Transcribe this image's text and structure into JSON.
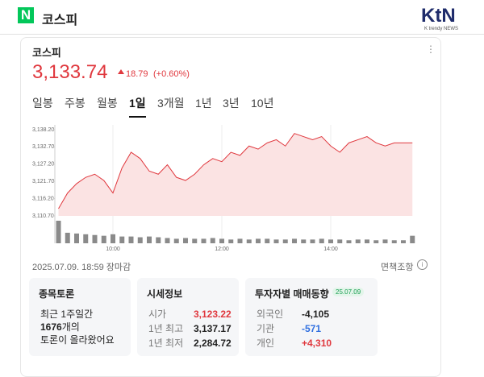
{
  "header": {
    "logo": "N",
    "title": "코스피",
    "brand": "KtN",
    "brand_sub": "K trendy NEWS"
  },
  "quote": {
    "name": "코스피",
    "price": "3,133.74",
    "change": "18.79",
    "change_pct": "(+0.60%)"
  },
  "tabs": [
    "일봉",
    "주봉",
    "월봉",
    "1일",
    "3개월",
    "1년",
    "3년",
    "10년"
  ],
  "selected_tab": "1일",
  "timestamp": "2025.07.09. 18:59 장마감",
  "disclaimer": "면책조항",
  "cards": {
    "discussion": {
      "title": "종목토론",
      "line1": "최근 1주일간",
      "count": "1676",
      "count_suffix": "개의",
      "line3": "토론이 올라왔어요"
    },
    "price_info": {
      "title": "시세정보",
      "rows": [
        {
          "label": "시가",
          "value": "3,123.22",
          "color": "#e0383e"
        },
        {
          "label": "1년 최고",
          "value": "3,137.17",
          "color": "#222222"
        },
        {
          "label": "1년 최저",
          "value": "2,284.72",
          "color": "#222222"
        }
      ]
    },
    "investors": {
      "title": "투자자별 매매동향",
      "badge": "25.07.09",
      "rows": [
        {
          "label": "외국인",
          "value": "-4,105",
          "color": "#222222"
        },
        {
          "label": "기관",
          "value": "-571",
          "color": "#2f6fe0"
        },
        {
          "label": "개인",
          "value": "+4,310",
          "color": "#e0383e"
        }
      ]
    }
  },
  "chart_data": {
    "type": "line",
    "x": [
      "09:00",
      "09:10",
      "09:20",
      "09:30",
      "09:40",
      "09:50",
      "10:00",
      "10:10",
      "10:20",
      "10:30",
      "10:40",
      "10:50",
      "11:00",
      "11:10",
      "11:20",
      "11:30",
      "11:40",
      "11:50",
      "12:00",
      "12:10",
      "12:20",
      "12:30",
      "12:40",
      "12:50",
      "13:00",
      "13:10",
      "13:20",
      "13:30",
      "13:40",
      "13:50",
      "14:00",
      "14:10",
      "14:20",
      "14:30",
      "14:40",
      "14:50",
      "15:00",
      "15:10",
      "15:20",
      "15:30"
    ],
    "series": [
      {
        "color": "#e0383e",
        "fill": "#fbe3e3",
        "values": [
          3113,
          3118,
          3121,
          3123,
          3124,
          3122,
          3118,
          3126,
          3131,
          3129,
          3125,
          3124,
          3127,
          3123,
          3122,
          3124,
          3127,
          3129,
          3128,
          3131,
          3130,
          3133,
          3132,
          3134,
          3135,
          3133,
          3137,
          3136,
          3135,
          3136,
          3133,
          3131,
          3134,
          3135,
          3136,
          3134,
          3133,
          3134,
          3134,
          3134
        ]
      }
    ],
    "volume": {
      "color": "#8a8a8a",
      "values": [
        30,
        14,
        13,
        12,
        11,
        10,
        12,
        9,
        9,
        8,
        9,
        8,
        7,
        6,
        7,
        6,
        6,
        7,
        6,
        5,
        6,
        5,
        6,
        6,
        5,
        5,
        6,
        5,
        5,
        6,
        5,
        5,
        4,
        5,
        5,
        4,
        5,
        4,
        4,
        10
      ]
    },
    "ylim": [
      3110.7,
      3138.2
    ],
    "yticks": [
      {
        "value": 3110.7,
        "label": "3,110.70"
      },
      {
        "value": 3116.2,
        "label": "3,116.20"
      },
      {
        "value": 3121.7,
        "label": "3,121.70"
      },
      {
        "value": 3127.2,
        "label": "3,127.20"
      },
      {
        "value": 3132.7,
        "label": "3,132.70"
      },
      {
        "value": 3138.2,
        "label": "3,138.20"
      }
    ],
    "xticks": [
      "10:00",
      "12:00",
      "14:00"
    ],
    "grid": false
  }
}
